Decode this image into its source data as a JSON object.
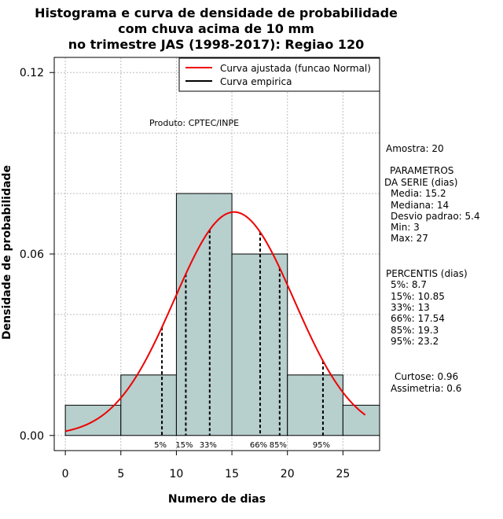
{
  "chart_data": {
    "type": "histogram",
    "title": [
      "Histograma e curva de densidade de probabilidade",
      "com chuva acima de 10 mm",
      "no trimestre JAS (1998-2017): Regiao 120"
    ],
    "xlabel": "Numero de dias",
    "ylabel": "Densidade de probabilidade",
    "xlim": [
      -1,
      28.3
    ],
    "ylim": [
      -0.005,
      0.125
    ],
    "xticks": [
      0,
      5,
      10,
      15,
      20,
      25
    ],
    "yticks": [
      0.0,
      0.06,
      0.12
    ],
    "ytick_labels": [
      "0.00",
      "0.06",
      "0.12"
    ],
    "bins": [
      {
        "from": 0,
        "to": 5,
        "density": 0.01
      },
      {
        "from": 5,
        "to": 10,
        "density": 0.02
      },
      {
        "from": 10,
        "to": 15,
        "density": 0.08
      },
      {
        "from": 15,
        "to": 20,
        "density": 0.06
      },
      {
        "from": 20,
        "to": 25,
        "density": 0.02
      },
      {
        "from": 25,
        "to": 30,
        "density": 0.01
      }
    ],
    "fill_color": "#b7cfcd",
    "normal_curve": {
      "mean": 15.2,
      "sd": 5.4,
      "from": 0,
      "to": 27,
      "color": "#ee0000"
    },
    "percentiles": [
      {
        "label": "5%",
        "value": 8.7
      },
      {
        "label": "15%",
        "value": 10.85
      },
      {
        "label": "33%",
        "value": 13
      },
      {
        "label": "66%",
        "value": 17.54
      },
      {
        "label": "85%",
        "value": 19.3
      },
      {
        "label": "95%",
        "value": 23.2
      }
    ],
    "legend": [
      {
        "label": "Curva ajustada (funcao Normal)",
        "color": "#ee0000"
      },
      {
        "label": "Curva empirica",
        "color": "#000000"
      }
    ],
    "annotation": "Produto: CPTEC/INPE"
  },
  "side_panel": {
    "sample": "Amostra: 20",
    "params_title_1": "PARAMETROS",
    "params_title_2": "DA SERIE (dias)",
    "media": "Media: 15.2",
    "mediana": "Mediana: 14",
    "desvio": "Desvio padrao: 5.4",
    "min": "Min: 3",
    "max": "Max: 27",
    "percentis_title": "PERCENTIS (dias)",
    "p5": "5%: 8.7",
    "p15": "15%: 10.85",
    "p33": "33%: 13",
    "p66": "66%: 17.54",
    "p85": "85%: 19.3",
    "p95": "95%: 23.2",
    "curtose": "Curtose: 0.96",
    "assimetria": "Assimetria: 0.6"
  }
}
